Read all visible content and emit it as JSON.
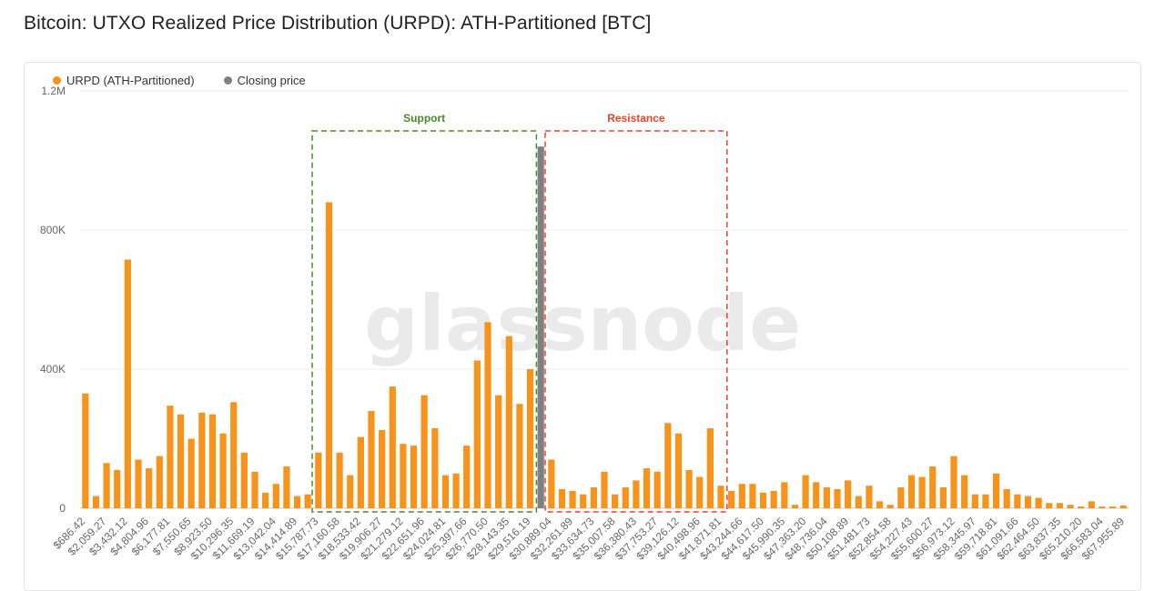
{
  "title": "Bitcoin: UTXO Realized Price Distribution (URPD): ATH-Partitioned [BTC]",
  "watermark": "glassnode",
  "legend": [
    {
      "label": "URPD (ATH-Partitioned)",
      "color": "#f7931a"
    },
    {
      "label": "Closing price",
      "color": "#808080"
    }
  ],
  "annotations": {
    "support": {
      "label": "Support",
      "color": "#4a8a2a"
    },
    "resistance": {
      "label": "Resistance",
      "color": "#e8442a"
    }
  },
  "chart_data": {
    "type": "bar",
    "ylim": [
      0,
      1200000
    ],
    "yticks": [
      {
        "value": 0,
        "label": "0"
      },
      {
        "value": 400000,
        "label": "400K"
      },
      {
        "value": 800000,
        "label": "800K"
      },
      {
        "value": 1200000,
        "label": "1.2M"
      }
    ],
    "grid": true,
    "legend_position": "top-left",
    "xticks": [
      "$686.42",
      "$2,059.27",
      "$3,432.12",
      "$4,804.96",
      "$6,177.81",
      "$7,550.65",
      "$8,923.50",
      "$10,296.35",
      "$11,669.19",
      "$13,042.04",
      "$14,414.89",
      "$15,787.73",
      "$17,160.58",
      "$18,533.42",
      "$19,906.27",
      "$21,279.12",
      "$22,651.96",
      "$24,024.81",
      "$25,397.66",
      "$26,770.50",
      "$28,143.35",
      "$29,516.19",
      "$30,889.04",
      "$32,261.89",
      "$33,634.73",
      "$35,007.58",
      "$36,380.43",
      "$37,753.27",
      "$39,126.12",
      "$40,498.96",
      "$41,871.81",
      "$43,244.66",
      "$44,617.50",
      "$45,990.35",
      "$47,363.20",
      "$48,736.04",
      "$50,108.89",
      "$51,481.73",
      "$52,854.58",
      "$54,227.43",
      "$55,600.27",
      "$56,973.12",
      "$58,345.97",
      "$59,718.81",
      "$61,091.66",
      "$62,464.50",
      "$63,837.35",
      "$65,210.20",
      "$66,583.04",
      "$67,955.89"
    ],
    "values": [
      330000,
      35000,
      130000,
      110000,
      715000,
      140000,
      115000,
      150000,
      295000,
      270000,
      200000,
      275000,
      270000,
      215000,
      305000,
      160000,
      105000,
      45000,
      70000,
      120000,
      35000,
      40000,
      160000,
      880000,
      160000,
      95000,
      205000,
      280000,
      225000,
      350000,
      185000,
      180000,
      325000,
      230000,
      95000,
      100000,
      180000,
      425000,
      535000,
      325000,
      495000,
      300000,
      400000,
      1040000,
      140000,
      55000,
      50000,
      40000,
      60000,
      105000,
      40000,
      60000,
      80000,
      115000,
      105000,
      245000,
      215000,
      110000,
      90000,
      230000,
      65000,
      50000,
      70000,
      70000,
      45000,
      50000,
      75000,
      10000,
      95000,
      75000,
      60000,
      55000,
      80000,
      35000,
      65000,
      20000,
      10000,
      60000,
      95000,
      90000,
      120000,
      60000,
      150000,
      95000,
      40000,
      40000,
      100000,
      55000,
      40000,
      35000,
      30000,
      15000,
      15000,
      10000,
      5000,
      20000,
      5000,
      5000,
      8000
    ],
    "closing_price_index": 43,
    "support_range_index": [
      22,
      42
    ],
    "resistance_range_index": [
      44,
      60
    ]
  }
}
